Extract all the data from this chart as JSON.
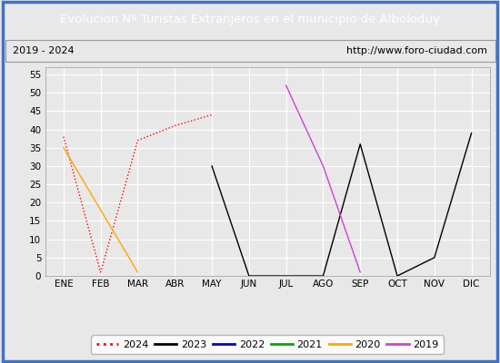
{
  "title": "Evolucion Nº Turistas Extranjeros en el municipio de Alboloduy",
  "subtitle_left": "2019 - 2024",
  "subtitle_right": "http://www.foro-ciudad.com",
  "title_bg": "#4472c4",
  "title_color": "white",
  "months": [
    "ENE",
    "FEB",
    "MAR",
    "ABR",
    "MAY",
    "JUN",
    "JUL",
    "AGO",
    "SEP",
    "OCT",
    "NOV",
    "DIC"
  ],
  "ylim": [
    0,
    57
  ],
  "yticks": [
    0,
    5,
    10,
    15,
    20,
    25,
    30,
    35,
    40,
    45,
    50,
    55
  ],
  "series": {
    "2024": {
      "color": "#ff0000",
      "linestyle": "dotted",
      "data": [
        38,
        1,
        37,
        41,
        44,
        null,
        null,
        null,
        null,
        null,
        null,
        null
      ]
    },
    "2023": {
      "color": "#000000",
      "linestyle": "solid",
      "data": [
        null,
        null,
        null,
        null,
        30,
        0,
        0,
        0,
        36,
        0,
        5,
        39
      ]
    },
    "2022": {
      "color": "#0000cc",
      "linestyle": "solid",
      "data": [
        null,
        null,
        null,
        null,
        null,
        null,
        null,
        null,
        null,
        null,
        null,
        null
      ]
    },
    "2021": {
      "color": "#00aa00",
      "linestyle": "solid",
      "data": [
        null,
        null,
        null,
        null,
        null,
        null,
        null,
        null,
        null,
        null,
        null,
        null
      ]
    },
    "2020": {
      "color": "#ffa500",
      "linestyle": "solid",
      "data": [
        35,
        18,
        1,
        null,
        null,
        null,
        null,
        null,
        null,
        null,
        null,
        null
      ]
    },
    "2019": {
      "color": "#cc44cc",
      "linestyle": "solid",
      "data": [
        null,
        null,
        null,
        null,
        null,
        null,
        52,
        30,
        1,
        null,
        null,
        null
      ]
    }
  },
  "legend_order": [
    "2024",
    "2023",
    "2022",
    "2021",
    "2020",
    "2019"
  ],
  "background_color": "#e8e8e8",
  "plot_bg": "#e8e8e8",
  "grid_color": "#ffffff",
  "outer_border_color": "#4472c4",
  "fig_width": 5.5,
  "fig_height": 4.0,
  "dpi": 100
}
